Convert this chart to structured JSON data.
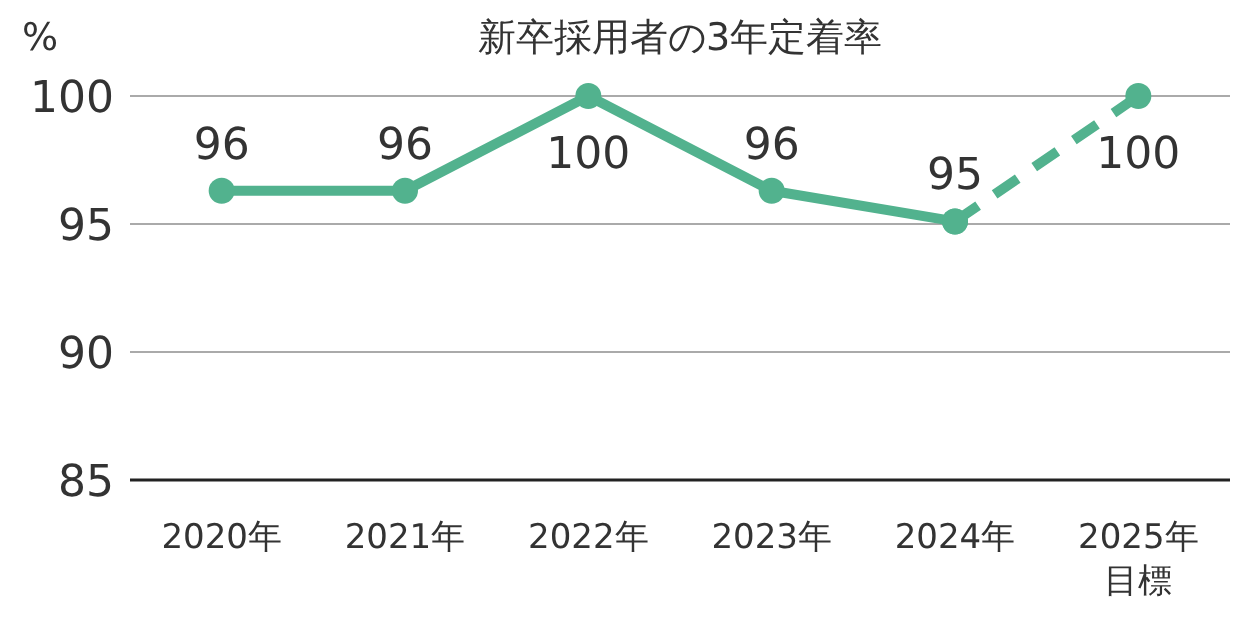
{
  "chart_data": {
    "type": "line",
    "title": "新卒採用者の3年定着率",
    "ylabel": "%",
    "categories": [
      "2020年",
      "2021年",
      "2022年",
      "2023年",
      "2024年",
      "2025年目標"
    ],
    "series": [
      {
        "color": "#52b28e",
        "line_style": "solid",
        "values": [
          96.3,
          96.3,
          100,
          96.3,
          95.1,
          null
        ],
        "value_labels": [
          "96",
          "96",
          "100",
          "96",
          "95",
          null
        ]
      },
      {
        "color": "#52b28e",
        "line_style": "dashed",
        "values": [
          null,
          null,
          null,
          null,
          95.1,
          100
        ],
        "value_labels": [
          null,
          null,
          null,
          null,
          null,
          "100"
        ]
      }
    ],
    "ylim": [
      85,
      100
    ],
    "yticks": [
      85,
      90,
      95,
      100
    ],
    "grid": "y",
    "marker": "circle"
  }
}
